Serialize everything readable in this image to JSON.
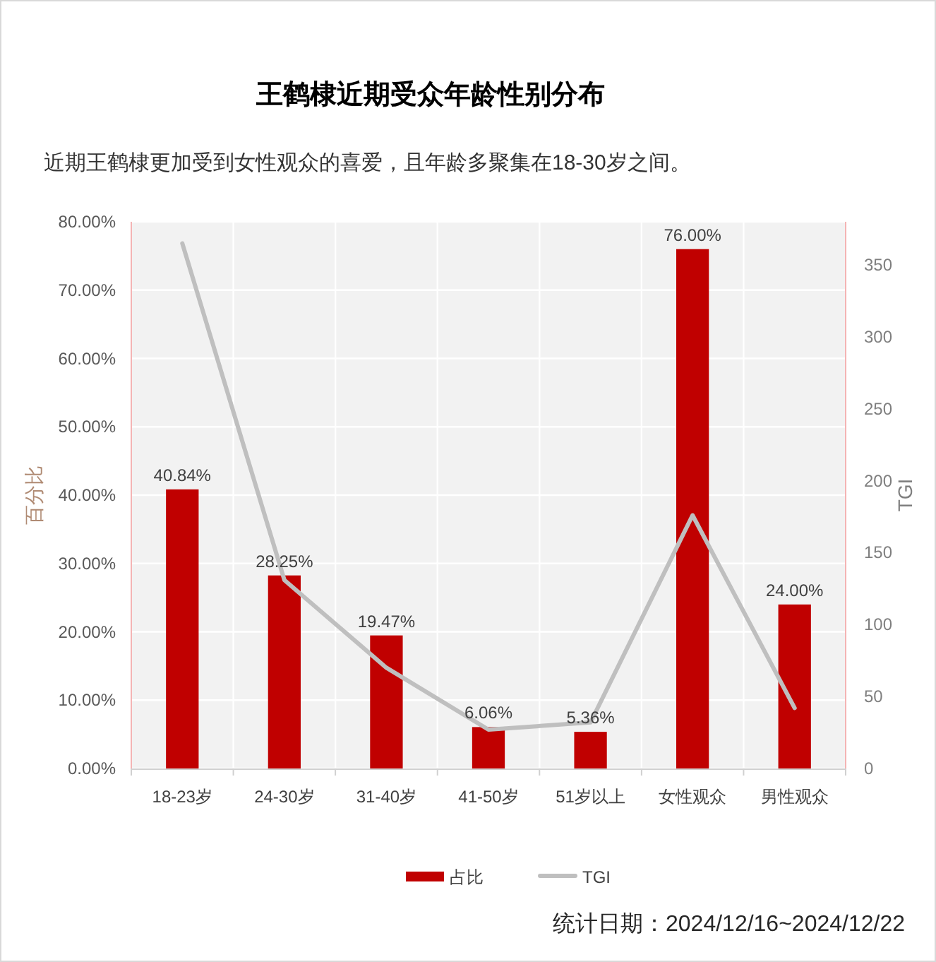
{
  "chart_data": {
    "type": "bar",
    "title": "王鹤棣近期受众年龄性别分布",
    "subtitle": "近期王鹤棣更加受到女性观众的喜爱，且年龄多聚集在18-30岁之间。",
    "ylabel": "百分比",
    "y2label": "TGI",
    "categories": [
      "18-23岁",
      "24-30岁",
      "31-40岁",
      "41-50岁",
      "51岁以上",
      "女性观众",
      "男性观众"
    ],
    "series": [
      {
        "name": "占比",
        "color": "#c00000",
        "values": [
          40.84,
          28.25,
          19.47,
          6.06,
          5.36,
          76.0,
          24.0
        ],
        "value_labels": [
          "40.84%",
          "28.25%",
          "19.47%",
          "6.06%",
          "5.36%",
          "76.00%",
          "24.00%"
        ]
      },
      {
        "name": "TGI",
        "type": "line",
        "axis": "y2",
        "color": "#bfbfbf",
        "values": [
          365,
          131,
          70,
          27,
          32,
          176,
          42
        ]
      }
    ],
    "ylim": [
      0,
      80
    ],
    "yticks": [
      {
        "value": 0,
        "label": "0.00%"
      },
      {
        "value": 10,
        "label": "10.00%"
      },
      {
        "value": 20,
        "label": "20.00%"
      },
      {
        "value": 30,
        "label": "30.00%"
      },
      {
        "value": 40,
        "label": "40.00%"
      },
      {
        "value": 50,
        "label": "50.00%"
      },
      {
        "value": 60,
        "label": "60.00%"
      },
      {
        "value": 70,
        "label": "70.00%"
      },
      {
        "value": 80,
        "label": "80.00%"
      }
    ],
    "y2lim": [
      0,
      380
    ],
    "y2ticks": [
      0,
      50,
      100,
      150,
      200,
      250,
      300,
      350
    ],
    "grid": true,
    "legend": "bottom",
    "annotations": [
      "统计日期：2024/12/16~2024/12/22"
    ]
  }
}
